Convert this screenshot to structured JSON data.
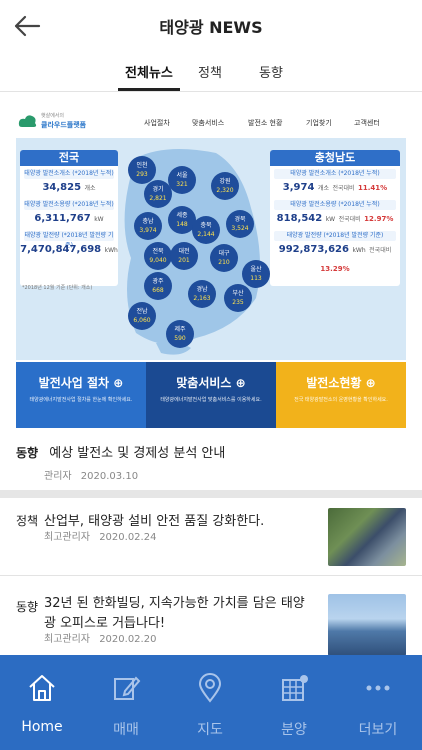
{
  "header": {
    "title": "태양광 NEWS"
  },
  "tabs": [
    {
      "label": "전체뉴스",
      "active": true
    },
    {
      "label": "정책",
      "active": false
    },
    {
      "label": "동향",
      "active": false
    }
  ],
  "banner": {
    "logo_line1": "햇살에서의",
    "logo_line2": "클라우드플랫폼",
    "nav": [
      "사업절차",
      "맞춤서비스",
      "발전소 현황",
      "기업찾기",
      "고객센터"
    ],
    "national": {
      "title": "전국",
      "rows": [
        {
          "label": "태양광 발전소개소 (*2018년 누적)",
          "value": "34,825",
          "unit": "개소"
        },
        {
          "label": "태양광 발전소용량 (*2018년 누적)",
          "value": "6,311,767",
          "unit": "kW"
        },
        {
          "label": "태양광 발전량 (*2018년 발전량 기준)",
          "value": "7,470,847,698",
          "unit": "kWh"
        }
      ]
    },
    "province": {
      "title": "충청남도",
      "rows": [
        {
          "label": "태양광 발전소개소 (*2018년 누적)",
          "value": "3,974",
          "unit": "개소",
          "compare_label": "전국대비",
          "compare": "11.41%"
        },
        {
          "label": "태양광 발전소용량 (*2018년 누적)",
          "value": "818,542",
          "unit": "kW",
          "compare_label": "전국대비",
          "compare": "12.97%"
        },
        {
          "label": "태양광 발전량 (*2018년 발전량 기준)",
          "value": "992,873,626",
          "unit": "kWh",
          "compare_label": "전국대비",
          "compare": "13.29%"
        }
      ]
    },
    "regions": [
      {
        "name": "인천",
        "value": "293"
      },
      {
        "name": "서울",
        "value": "321"
      },
      {
        "name": "경기",
        "value": "2,821"
      },
      {
        "name": "강원",
        "value": "2,320"
      },
      {
        "name": "충남",
        "value": "3,974"
      },
      {
        "name": "세종",
        "value": "148"
      },
      {
        "name": "충북",
        "value": "2,144"
      },
      {
        "name": "경북",
        "value": "3,524"
      },
      {
        "name": "전북",
        "value": "9,040"
      },
      {
        "name": "대전",
        "value": "201"
      },
      {
        "name": "대구",
        "value": "210"
      },
      {
        "name": "울산",
        "value": "113"
      },
      {
        "name": "광주",
        "value": "668"
      },
      {
        "name": "경남",
        "value": "2,163"
      },
      {
        "name": "부산",
        "value": "235"
      },
      {
        "name": "전남",
        "value": "6,060"
      },
      {
        "name": "제주",
        "value": "590"
      }
    ],
    "note": "*2018년 12월 기준 (단위: 개소)",
    "buttons": [
      {
        "title": "발전사업 절차",
        "sub": "태양광에너지발전사업 절차를 한눈에 확인하세요.",
        "color": "#2a6fc9"
      },
      {
        "title": "맞춤서비스",
        "sub": "태양광에너지발전사업 맞춤서비스를 이용하세요.",
        "color": "#1b4a92"
      },
      {
        "title": "발전소현황",
        "sub": "전국 태양광발전소의 운영현황을 확인하세요.",
        "color": "#f2b21b"
      }
    ]
  },
  "news": [
    {
      "category": "동향",
      "title": "예상 발전소 및 경제성 분석 안내",
      "author": "관리자",
      "date": "2020.03.10"
    },
    {
      "category": "정책",
      "title": "산업부, 태양광 설비 안전 품질 강화한다.",
      "author": "최고관리자",
      "date": "2020.02.24"
    },
    {
      "category": "동향",
      "title": "32년 된 한화빌딩, 지속가능한 가치를 담은 태양광 오피스로 거듭나다!",
      "author": "최고관리자",
      "date": "2020.02.20"
    }
  ],
  "bottom_nav": [
    {
      "label": "Home",
      "icon": "home-icon",
      "active": true
    },
    {
      "label": "매매",
      "icon": "edit-icon",
      "active": false
    },
    {
      "label": "지도",
      "icon": "map-pin-icon",
      "active": false
    },
    {
      "label": "분양",
      "icon": "building-grid-icon",
      "active": false
    },
    {
      "label": "더보기",
      "icon": "more-icon",
      "active": false
    }
  ],
  "colors": {
    "accent": "#2c6cc2",
    "map_bg": "#d6e8f6",
    "region_badge": "#1f4d9b"
  }
}
